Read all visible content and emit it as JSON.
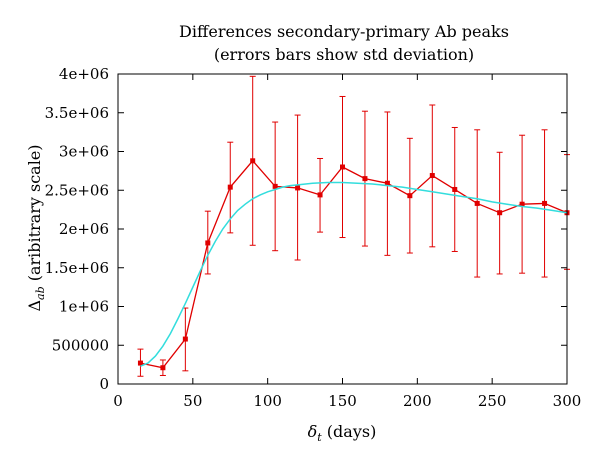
{
  "chart_data": {
    "type": "line",
    "title": "Differences secondary-primary Ab peaks",
    "subtitle": "(errors bars show std deviation)",
    "xlabel": {
      "symbol": "δ",
      "sub": "t",
      "text": " (days)"
    },
    "ylabel": {
      "symbol": "Δ",
      "sub": "ab",
      "text": " (aribitrary scale)"
    },
    "xlim": [
      0,
      300
    ],
    "ylim": [
      0,
      4000000
    ],
    "xticks": [
      0,
      50,
      100,
      150,
      200,
      250,
      300
    ],
    "xtick_labels": [
      "0",
      "50",
      "100",
      "150",
      "200",
      "250",
      "300"
    ],
    "yticks": [
      0,
      500000,
      1000000,
      1500000,
      2000000,
      2500000,
      3000000,
      3500000,
      4000000
    ],
    "ytick_labels": [
      "0",
      "500000",
      "1e+06",
      "1.5e+06",
      "2e+06",
      "2.5e+06",
      "3e+06",
      "3.5e+06",
      "4e+06"
    ],
    "grid": false,
    "series": [
      {
        "color": "#e00000",
        "style": "line-points-errorbars",
        "x": [
          15,
          30,
          45,
          60,
          75,
          90,
          105,
          120,
          135,
          150,
          165,
          180,
          195,
          210,
          225,
          240,
          255,
          270,
          285,
          300
        ],
        "y": [
          270000,
          210000,
          580000,
          1820000,
          2540000,
          2880000,
          2550000,
          2530000,
          2440000,
          2800000,
          2650000,
          2590000,
          2430000,
          2690000,
          2510000,
          2330000,
          2210000,
          2320000,
          2330000,
          2210000
        ],
        "err_low": [
          100000,
          110000,
          170000,
          1420000,
          1950000,
          1790000,
          1720000,
          1600000,
          1960000,
          1890000,
          1780000,
          1660000,
          1690000,
          1770000,
          1710000,
          1380000,
          1420000,
          1430000,
          1380000,
          1480000
        ],
        "err_high": [
          450000,
          310000,
          980000,
          2230000,
          3120000,
          3970000,
          3380000,
          3470000,
          2910000,
          3710000,
          3520000,
          3510000,
          3170000,
          3600000,
          3310000,
          3280000,
          2990000,
          3210000,
          3280000,
          2960000
        ]
      },
      {
        "color": "#33dddd",
        "style": "smooth-line",
        "x": [
          15,
          20,
          25,
          30,
          35,
          40,
          45,
          50,
          55,
          60,
          65,
          70,
          75,
          80,
          85,
          90,
          95,
          100,
          105,
          110,
          115,
          120,
          130,
          140,
          150,
          160,
          170,
          180,
          190,
          200,
          210,
          220,
          230,
          240,
          250,
          260,
          270,
          280,
          290,
          300
        ],
        "y": [
          230000,
          270000,
          360000,
          490000,
          650000,
          840000,
          1040000,
          1250000,
          1460000,
          1660000,
          1840000,
          2000000,
          2130000,
          2240000,
          2320000,
          2390000,
          2440000,
          2480000,
          2510000,
          2540000,
          2560000,
          2570000,
          2590000,
          2600000,
          2600000,
          2590000,
          2580000,
          2560000,
          2540000,
          2510000,
          2480000,
          2450000,
          2420000,
          2390000,
          2350000,
          2320000,
          2290000,
          2270000,
          2240000,
          2210000
        ]
      }
    ]
  }
}
